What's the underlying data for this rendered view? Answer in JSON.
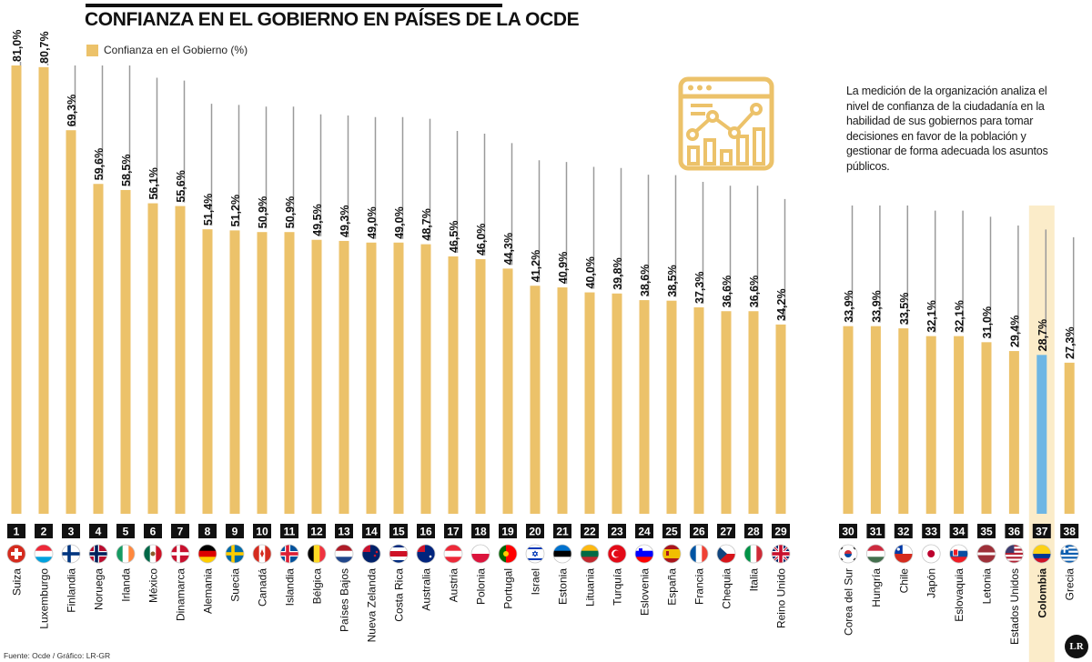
{
  "header": {
    "title": "CONFIANZA EN EL GOBIERNO EN PAÍSES DE LA OCDE",
    "legend_label": "Confianza en el Gobierno (%)"
  },
  "note": "La medición de la organización analiza el nivel de confianza de la ciudadanía en la habilidad de sus gobiernos para tomar decisiones en favor de la población y gestionar de forma adecuada los asuntos públicos.",
  "footer": {
    "source": "Fuente: Ocde / Gráfico: LR-GR",
    "logo_text": "LR"
  },
  "icons": {
    "illustration": "analytics-dashboard-icon",
    "logo": "lr-logo"
  },
  "colors": {
    "bar": "#ecc26a",
    "highlight_bar": "#6db6e4",
    "highlight_band": "#fbecc9",
    "grid_line": "#9a9a9a",
    "rank_box": "#111111"
  },
  "chart_data": {
    "type": "bar",
    "title": "CONFIANZA EN EL GOBIERNO EN PAÍSES DE LA OCDE",
    "series": [
      {
        "name": "Confianza en el Gobierno (%)"
      }
    ],
    "categories": [
      "Suiza",
      "Luxemburgo",
      "Finlandia",
      "Noruega",
      "Irlanda",
      "México",
      "Dinamarca",
      "Alemania",
      "Suecia",
      "Canadá",
      "Islandia",
      "Bélgica",
      "Países Bajos",
      "Nueva Zelanda",
      "Costa Rica",
      "Australia",
      "Austria",
      "Polonia",
      "Portugal",
      "Israel",
      "Estonia",
      "Lituania",
      "Turquía",
      "Eslovenia",
      "España",
      "Francia",
      "Chequia",
      "Italia",
      "Reino Unido",
      "Corea del Sur",
      "Hungría",
      "Chile",
      "Japón",
      "Eslovaquia",
      "Letonia",
      "Estados Unidos",
      "Colombia",
      "Grecia"
    ],
    "values": [
      81.0,
      80.7,
      69.3,
      59.6,
      58.5,
      56.1,
      55.6,
      51.4,
      51.2,
      50.9,
      50.9,
      49.5,
      49.3,
      49.0,
      49.0,
      48.7,
      46.5,
      46.0,
      44.3,
      41.2,
      40.9,
      40.0,
      39.8,
      38.6,
      38.5,
      37.3,
      36.6,
      36.6,
      34.2,
      33.9,
      33.9,
      33.5,
      32.1,
      32.1,
      31.0,
      29.4,
      28.7,
      27.3
    ],
    "value_labels": [
      "81,0%",
      "80,7%",
      "69,3%",
      "59,6%",
      "58,5%",
      "56,1%",
      "55,6%",
      "51,4%",
      "51,2%",
      "50,9%",
      "50,9%",
      "49,5%",
      "49,3%",
      "49,0%",
      "49,0%",
      "48,7%",
      "46,5%",
      "46,0%",
      "44,3%",
      "41,2%",
      "40,9%",
      "40,0%",
      "39,8%",
      "38,6%",
      "38,5%",
      "37,3%",
      "36,6%",
      "36,6%",
      "34,2%",
      "33,9%",
      "33,9%",
      "33,5%",
      "32,1%",
      "32,1%",
      "31,0%",
      "29,4%",
      "28,7%",
      "27,3%"
    ],
    "ranks": [
      "1",
      "2",
      "3",
      "4",
      "5",
      "6",
      "7",
      "8",
      "9",
      "10",
      "11",
      "12",
      "13",
      "14",
      "15",
      "16",
      "17",
      "18",
      "19",
      "20",
      "21",
      "22",
      "23",
      "24",
      "25",
      "26",
      "27",
      "28",
      "29",
      "30",
      "31",
      "32",
      "33",
      "34",
      "35",
      "36",
      "37",
      "38"
    ],
    "flags": [
      "ch",
      "lu",
      "fi",
      "no",
      "ie",
      "mx",
      "dk",
      "de",
      "se",
      "ca",
      "is",
      "be",
      "nl",
      "nz",
      "cr",
      "au",
      "at",
      "pl",
      "pt",
      "il",
      "ee",
      "lt",
      "tr",
      "si",
      "es",
      "fr",
      "cz",
      "it",
      "gb",
      "kr",
      "hu",
      "cl",
      "jp",
      "sk",
      "lv",
      "us",
      "co",
      "gr"
    ],
    "highlight": "Colombia",
    "ylim": [
      0,
      81
    ],
    "grid": false,
    "legend": "top-left",
    "xlabel": "",
    "ylabel": ""
  }
}
